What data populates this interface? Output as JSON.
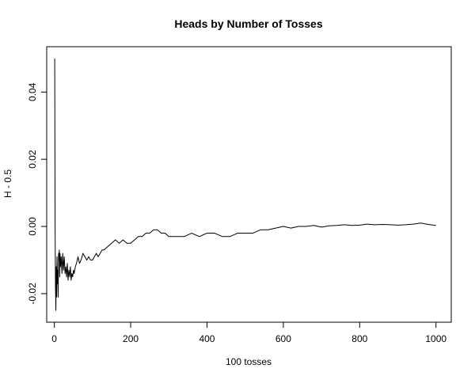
{
  "chart_data": {
    "type": "line",
    "title": "Heads by Number of Tosses",
    "xlabel": "100 tosses",
    "ylabel": "H - 0.5",
    "xlim": [
      -20,
      1040
    ],
    "ylim": [
      -0.0285,
      0.0535
    ],
    "x_ticks": [
      0,
      200,
      400,
      600,
      800,
      1000
    ],
    "x_tick_labels": [
      "0",
      "200",
      "400",
      "600",
      "800",
      "1000"
    ],
    "y_ticks": [
      -0.02,
      0.0,
      0.02,
      0.04
    ],
    "y_tick_labels": [
      "-0.02",
      "0.00",
      "0.02",
      "0.04"
    ],
    "grid": false,
    "line_color": "#000000",
    "series": [
      {
        "x": [
          1,
          2,
          3,
          4,
          5,
          6,
          7,
          8,
          9,
          10,
          11,
          12,
          13,
          14,
          15,
          16,
          18,
          20,
          22,
          24,
          26,
          28,
          30,
          32,
          34,
          36,
          38,
          40,
          42,
          44,
          46,
          48,
          50,
          52,
          55,
          58,
          62,
          66,
          70,
          75,
          80,
          85,
          90,
          95,
          100,
          105,
          110,
          115,
          120,
          125,
          130,
          140,
          150,
          160,
          170,
          180,
          190,
          200,
          210,
          220,
          230,
          240,
          250,
          260,
          270,
          280,
          290,
          300,
          320,
          340,
          360,
          380,
          400,
          420,
          440,
          460,
          480,
          500,
          520,
          540,
          560,
          580,
          600,
          620,
          640,
          660,
          680,
          700,
          720,
          740,
          760,
          780,
          800,
          820,
          840,
          860,
          880,
          900,
          920,
          940,
          960,
          980,
          1000
        ],
        "y": [
          0.05,
          0.0,
          -0.018,
          -0.025,
          -0.012,
          -0.021,
          -0.009,
          -0.017,
          -0.013,
          -0.021,
          -0.008,
          -0.01,
          -0.007,
          -0.015,
          -0.008,
          -0.012,
          -0.009,
          -0.014,
          -0.008,
          -0.013,
          -0.009,
          -0.014,
          -0.012,
          -0.015,
          -0.011,
          -0.016,
          -0.013,
          -0.015,
          -0.012,
          -0.016,
          -0.014,
          -0.015,
          -0.013,
          -0.014,
          -0.012,
          -0.011,
          -0.009,
          -0.011,
          -0.01,
          -0.008,
          -0.009,
          -0.01,
          -0.009,
          -0.01,
          -0.01,
          -0.009,
          -0.008,
          -0.009,
          -0.008,
          -0.007,
          -0.007,
          -0.006,
          -0.005,
          -0.004,
          -0.005,
          -0.004,
          -0.005,
          -0.005,
          -0.004,
          -0.003,
          -0.003,
          -0.002,
          -0.002,
          -0.001,
          -0.001,
          -0.002,
          -0.002,
          -0.003,
          -0.003,
          -0.003,
          -0.002,
          -0.003,
          -0.002,
          -0.002,
          -0.003,
          -0.003,
          -0.002,
          -0.002,
          -0.002,
          -0.001,
          -0.001,
          -0.0005,
          0.0,
          -0.0005,
          0.0,
          0.0,
          0.0003,
          -0.0002,
          0.0002,
          0.0003,
          0.0005,
          0.0003,
          0.0004,
          0.0007,
          0.0005,
          0.0006,
          0.0005,
          0.0004,
          0.0005,
          0.0007,
          0.001,
          0.0006,
          0.0003
        ]
      }
    ]
  }
}
